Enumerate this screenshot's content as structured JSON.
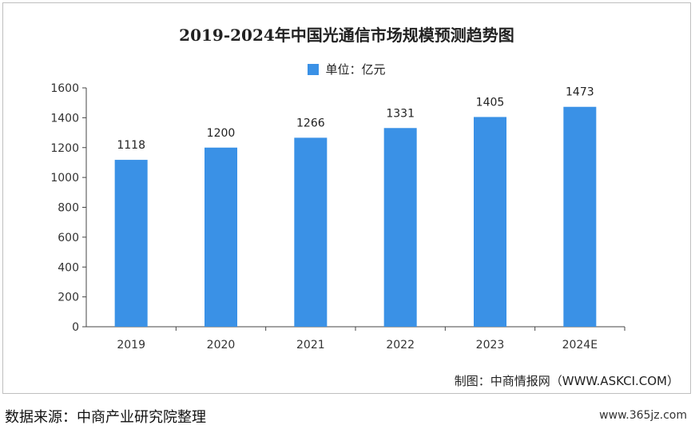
{
  "chart_data": {
    "type": "bar",
    "title": "2019-2024年中国光通信市场规模预测趋势图",
    "legend": "单位：亿元",
    "categories": [
      "2019",
      "2020",
      "2021",
      "2022",
      "2023",
      "2024E"
    ],
    "values": [
      1118,
      1200,
      1266,
      1331,
      1405,
      1473
    ],
    "data_labels": [
      "1118",
      "1200",
      "1266",
      "1331",
      "1405",
      "1473"
    ],
    "ylim": [
      0,
      1600
    ],
    "yticks": [
      0,
      200,
      400,
      600,
      800,
      1000,
      1200,
      1400,
      1600
    ],
    "grid": false,
    "legend_position": "top-center",
    "bar_color": "#3a91e6"
  },
  "credit": "制图：中商情报网（WWW.ASKCI.COM）",
  "source": "数据来源：中商产业研究院整理",
  "site": "www.365jz.com"
}
